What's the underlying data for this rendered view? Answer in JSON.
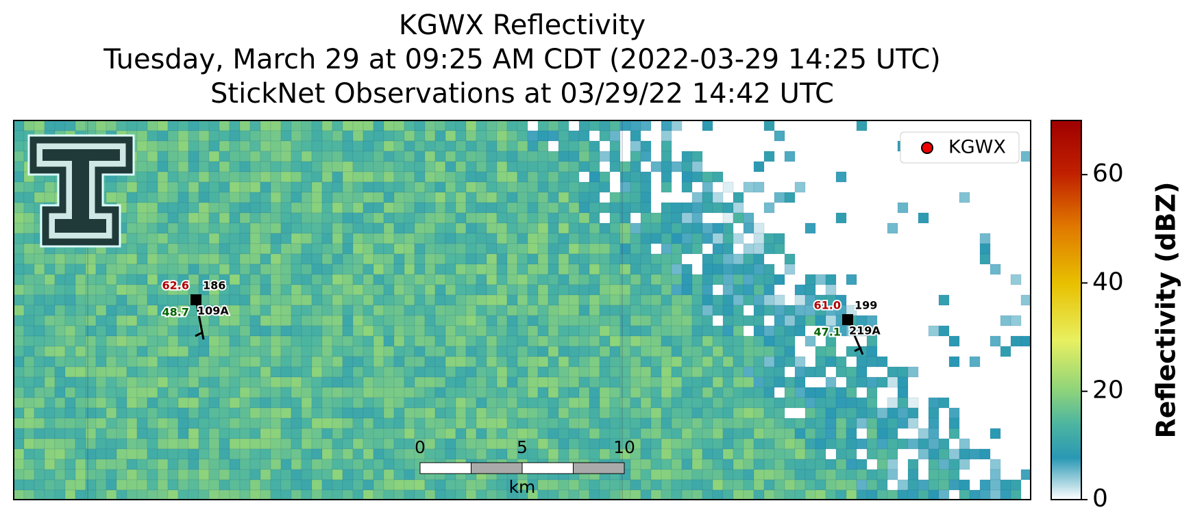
{
  "title": [
    "KGWX Reflectivity",
    "Tuesday, March 29 at 09:25 AM CDT (2022-03-29 14:25 UTC)",
    "StickNet Observations at 03/29/22 14:42 UTC"
  ],
  "legend": {
    "label": "KGWX"
  },
  "colorbar": {
    "label": "Reflectivity (dBZ)",
    "lim": [
      0,
      70
    ],
    "ticks": [
      0,
      20,
      40,
      60
    ]
  },
  "scale_bar": {
    "ticks": [
      0,
      5,
      10
    ],
    "unit": "km"
  },
  "stations": [
    {
      "id": "109A",
      "temperature": "62.6",
      "dewpoint": "48.7",
      "direction": "186"
    },
    {
      "id": "219A",
      "temperature": "61.0",
      "dewpoint": "47.1",
      "direction": "199"
    }
  ]
}
